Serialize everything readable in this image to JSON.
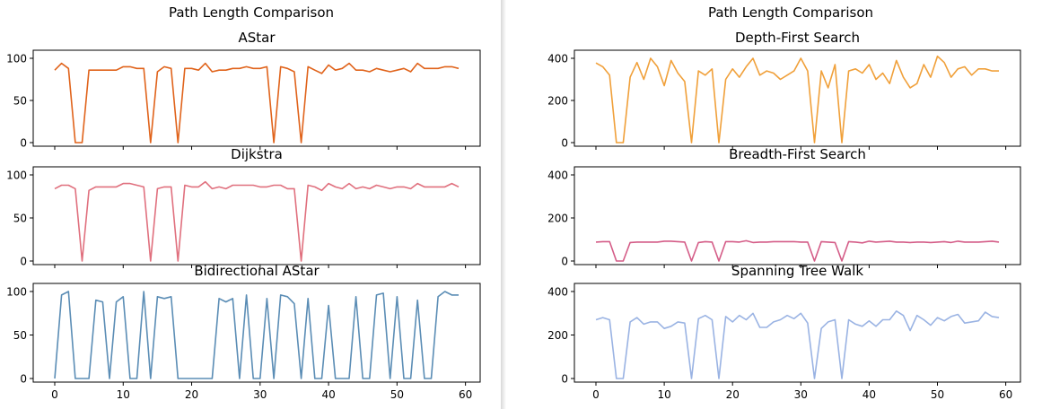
{
  "figure_titles": [
    "Path Length Comparison",
    "Path Length Comparison"
  ],
  "chart_data": [
    {
      "type": "line",
      "title": "AStar",
      "color": "#e0631b",
      "xlim": [
        0,
        59
      ],
      "ylim": [
        0,
        100
      ],
      "xticks": [
        0,
        10,
        20,
        30,
        40,
        50,
        60
      ],
      "yticks": [
        0,
        50,
        100
      ],
      "values": [
        86,
        94,
        88,
        0,
        0,
        86,
        86,
        86,
        86,
        86,
        90,
        90,
        88,
        88,
        0,
        84,
        90,
        88,
        0,
        88,
        88,
        86,
        94,
        84,
        86,
        86,
        88,
        88,
        90,
        88,
        88,
        90,
        0,
        90,
        88,
        84,
        0,
        90,
        86,
        82,
        92,
        86,
        88,
        94,
        86,
        86,
        84,
        88,
        86,
        84,
        86,
        88,
        84,
        94,
        88,
        88,
        88,
        90,
        90,
        88
      ]
    },
    {
      "type": "line",
      "title": "Dijkstra",
      "color": "#e0707e",
      "xlim": [
        0,
        59
      ],
      "ylim": [
        0,
        100
      ],
      "xticks": [
        0,
        10,
        20,
        30,
        40,
        50,
        60
      ],
      "yticks": [
        0,
        50,
        100
      ],
      "values": [
        84,
        88,
        88,
        84,
        0,
        82,
        86,
        86,
        86,
        86,
        90,
        90,
        88,
        86,
        0,
        84,
        86,
        86,
        0,
        88,
        86,
        86,
        92,
        84,
        86,
        84,
        88,
        88,
        88,
        88,
        86,
        86,
        88,
        88,
        84,
        84,
        0,
        88,
        86,
        82,
        90,
        86,
        84,
        90,
        84,
        86,
        84,
        88,
        86,
        84,
        86,
        86,
        84,
        90,
        86,
        86,
        86,
        86,
        90,
        86
      ]
    },
    {
      "type": "line",
      "title": "Bidirectional AStar",
      "color": "#5b8db5",
      "xlim": [
        0,
        59
      ],
      "ylim": [
        0,
        100
      ],
      "xticks": [
        0,
        10,
        20,
        30,
        40,
        50,
        60
      ],
      "yticks": [
        0,
        50,
        100
      ],
      "values": [
        0,
        96,
        100,
        0,
        0,
        0,
        90,
        88,
        0,
        88,
        94,
        0,
        0,
        100,
        0,
        94,
        92,
        94,
        0,
        0,
        0,
        0,
        0,
        0,
        92,
        88,
        92,
        0,
        96,
        0,
        0,
        92,
        0,
        96,
        94,
        86,
        0,
        92,
        0,
        0,
        84,
        0,
        0,
        0,
        94,
        0,
        0,
        96,
        98,
        0,
        94,
        0,
        0,
        90,
        0,
        0,
        94,
        100,
        96,
        96
      ]
    },
    {
      "type": "line",
      "title": "Depth-First Search",
      "color": "#f0a03a",
      "xlim": [
        0,
        59
      ],
      "ylim": [
        0,
        400
      ],
      "xticks": [
        0,
        10,
        20,
        30,
        40,
        50,
        60
      ],
      "yticks": [
        0,
        200,
        400
      ],
      "values": [
        378,
        360,
        320,
        0,
        0,
        310,
        380,
        300,
        400,
        360,
        270,
        390,
        330,
        290,
        0,
        340,
        320,
        350,
        0,
        300,
        350,
        310,
        360,
        400,
        320,
        340,
        330,
        300,
        320,
        340,
        400,
        340,
        0,
        340,
        260,
        370,
        0,
        340,
        350,
        330,
        370,
        300,
        330,
        280,
        390,
        310,
        260,
        280,
        370,
        310,
        410,
        380,
        310,
        350,
        360,
        320,
        350,
        350,
        340,
        340
      ]
    },
    {
      "type": "line",
      "title": "Breadth-First Search",
      "color": "#d45c87",
      "xlim": [
        0,
        59
      ],
      "ylim": [
        0,
        400
      ],
      "xticks": [
        0,
        10,
        20,
        30,
        40,
        50,
        60
      ],
      "yticks": [
        0,
        200,
        400
      ],
      "values": [
        88,
        90,
        90,
        0,
        0,
        86,
        88,
        88,
        88,
        88,
        92,
        92,
        90,
        88,
        0,
        86,
        90,
        88,
        0,
        90,
        90,
        88,
        94,
        86,
        88,
        88,
        90,
        90,
        90,
        90,
        88,
        88,
        0,
        90,
        88,
        86,
        0,
        90,
        88,
        84,
        92,
        88,
        90,
        92,
        88,
        88,
        86,
        88,
        88,
        86,
        88,
        90,
        86,
        92,
        88,
        88,
        88,
        90,
        92,
        88
      ]
    },
    {
      "type": "line",
      "title": "Spanning Tree Walk",
      "color": "#9ab3e3",
      "xlim": [
        0,
        59
      ],
      "ylim": [
        0,
        400
      ],
      "xticks": [
        0,
        10,
        20,
        30,
        40,
        50,
        60
      ],
      "yticks": [
        0,
        200,
        400
      ],
      "values": [
        270,
        280,
        270,
        0,
        0,
        260,
        280,
        250,
        260,
        260,
        230,
        240,
        260,
        255,
        0,
        275,
        290,
        270,
        0,
        285,
        260,
        290,
        270,
        300,
        235,
        235,
        260,
        270,
        290,
        275,
        300,
        255,
        0,
        230,
        260,
        270,
        0,
        270,
        250,
        240,
        265,
        240,
        270,
        270,
        310,
        290,
        220,
        290,
        270,
        245,
        280,
        265,
        285,
        295,
        255,
        260,
        265,
        305,
        285,
        280
      ]
    }
  ]
}
